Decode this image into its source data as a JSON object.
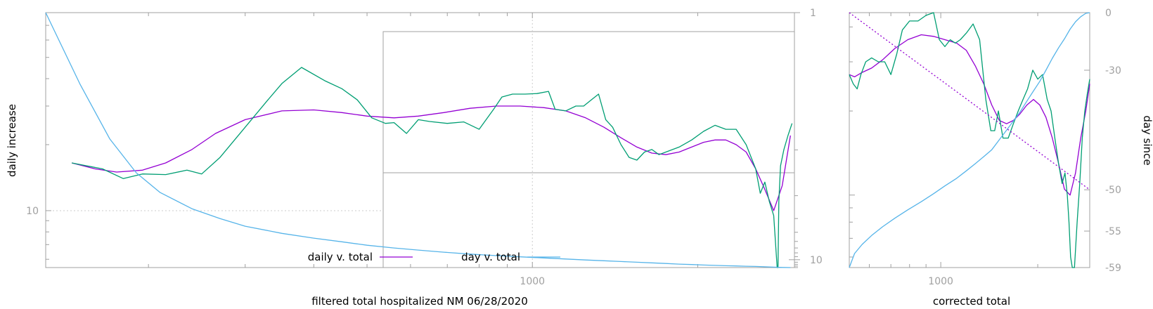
{
  "chart_data": [
    {
      "type": "line",
      "title": "",
      "xlabel": "filtered total hospitalized NM 06/28/2020",
      "ylabel": "daily increase",
      "y2label": "",
      "x_scale": "log",
      "y_scale": "log",
      "xlim": [
        130,
        3000
      ],
      "ylim": [
        5.5,
        80
      ],
      "y2_scale": "reciprocal",
      "y2lim": [
        1,
        14
      ],
      "x_ticks": [
        {
          "value": 1000,
          "label": "1000"
        }
      ],
      "y_ticks": [
        {
          "value": 10,
          "label": "10"
        }
      ],
      "y2_ticks": [
        {
          "value": 1,
          "label": "1"
        },
        {
          "value": 10,
          "label": "10"
        }
      ],
      "grid": "dotted lines at x=1000 and y=10",
      "legend": "bottom-center",
      "series": [
        {
          "name": "daily v. total",
          "color": "#9400d3",
          "axis": "y",
          "x": [
            145,
            160,
            175,
            195,
            215,
            240,
            265,
            300,
            350,
            400,
            450,
            500,
            560,
            620,
            690,
            770,
            860,
            950,
            1050,
            1150,
            1250,
            1350,
            1450,
            1550,
            1650,
            1750,
            1850,
            1950,
            2050,
            2150,
            2250,
            2350,
            2450,
            2550,
            2650,
            2750,
            2850,
            2950
          ],
          "y": [
            16.5,
            15.5,
            15.0,
            15.3,
            16.5,
            19.0,
            22.5,
            26.0,
            28.5,
            28.8,
            28.0,
            27.0,
            26.5,
            27.0,
            28.0,
            29.3,
            30.0,
            30.0,
            29.5,
            28.5,
            26.5,
            24.0,
            21.5,
            19.5,
            18.3,
            18.0,
            18.5,
            19.5,
            20.5,
            21.0,
            21.0,
            20.0,
            18.5,
            15.5,
            12.5,
            10.0,
            13.0,
            22.0
          ]
        },
        {
          "name": "",
          "color": "#009e73",
          "axis": "y",
          "x": [
            145,
            165,
            180,
            195,
            215,
            235,
            250,
            270,
            300,
            330,
            350,
            380,
            420,
            450,
            480,
            510,
            540,
            560,
            590,
            620,
            650,
            700,
            750,
            800,
            850,
            880,
            920,
            970,
            1020,
            1070,
            1100,
            1150,
            1200,
            1240,
            1280,
            1320,
            1360,
            1400,
            1450,
            1500,
            1550,
            1600,
            1650,
            1700,
            1750,
            1850,
            1950,
            2050,
            2150,
            2250,
            2350,
            2450,
            2550,
            2600,
            2650,
            2700,
            2750,
            2790,
            2800,
            2810,
            2830,
            2870,
            2920,
            2970
          ],
          "y": [
            16.5,
            15.5,
            14.0,
            14.7,
            14.6,
            15.3,
            14.7,
            17.5,
            24.0,
            32.0,
            38.0,
            45.0,
            39.0,
            36.0,
            32.0,
            26.5,
            25.0,
            25.2,
            22.5,
            26.0,
            25.5,
            25.0,
            25.4,
            23.5,
            29.0,
            33.0,
            34.0,
            34.0,
            34.2,
            35.0,
            29.0,
            28.5,
            30.0,
            30.0,
            32.0,
            34.0,
            26.0,
            24.0,
            20.0,
            17.5,
            17.0,
            18.5,
            19.0,
            18.0,
            18.5,
            19.5,
            21.0,
            23.0,
            24.5,
            23.5,
            23.5,
            20.0,
            15.5,
            12.0,
            13.5,
            11.0,
            9.5,
            5.5,
            5.5,
            11.0,
            16.0,
            19.0,
            22.0,
            25.0
          ]
        },
        {
          "name": "day v. total",
          "color": "#56b4e9",
          "axis": "y2",
          "x": [
            130,
            150,
            170,
            190,
            210,
            240,
            270,
            300,
            350,
            400,
            450,
            500,
            560,
            620,
            690,
            770,
            860,
            950,
            1050,
            1150,
            1250,
            1350,
            1450,
            1550,
            1650,
            1750,
            1850,
            1950,
            2050,
            2150,
            2250,
            2350,
            2450,
            2550,
            2650,
            2750,
            2850,
            2950
          ],
          "y": [
            1.0,
            1.35,
            1.85,
            2.4,
            2.9,
            3.5,
            4.0,
            4.5,
            5.1,
            5.6,
            6.05,
            6.55,
            7.0,
            7.4,
            7.85,
            8.3,
            8.7,
            9.05,
            9.4,
            9.75,
            10.1,
            10.4,
            10.7,
            11.0,
            11.3,
            11.6,
            11.9,
            12.15,
            12.4,
            12.6,
            12.8,
            12.95,
            13.1,
            13.25,
            13.45,
            13.7,
            13.9,
            14.0
          ]
        }
      ]
    },
    {
      "type": "line",
      "title": "",
      "xlabel": "corrected total",
      "ylabel": "",
      "y2label": "day since",
      "x_scale": "log",
      "xlim": [
        520,
        2900
      ],
      "y_scale": "log",
      "ylim": [
        5.5,
        45
      ],
      "y2_scale": "custom",
      "y2lim": [
        -59,
        0
      ],
      "x_ticks": [
        {
          "value": 1000,
          "label": "1000"
        }
      ],
      "y2_ticks": [
        {
          "value": 0,
          "label": "0"
        },
        {
          "value": -30,
          "label": "-30"
        },
        {
          "value": -50,
          "label": "-50"
        },
        {
          "value": -55,
          "label": "-55"
        },
        {
          "value": -59,
          "label": "-59"
        }
      ],
      "series": [
        {
          "name": "",
          "color": "#9400d3",
          "axis": "y",
          "x": [
            520,
            540,
            570,
            610,
            660,
            720,
            790,
            870,
            950,
            1030,
            1120,
            1200,
            1280,
            1360,
            1440,
            1520,
            1600,
            1680,
            1760,
            1850,
            1940,
            2030,
            2120,
            2220,
            2320,
            2420,
            2520,
            2620,
            2720,
            2820,
            2900
          ],
          "y": [
            27,
            26.5,
            27.5,
            28.5,
            30.5,
            33.5,
            36,
            37.5,
            37,
            36,
            35,
            33,
            29,
            25,
            21,
            18.5,
            18,
            18.5,
            19.5,
            21,
            22,
            21,
            19,
            16,
            13,
            10.5,
            10,
            12,
            16,
            20,
            25
          ]
        },
        {
          "name": "",
          "color": "#009e73",
          "axis": "y",
          "x": [
            520,
            535,
            550,
            565,
            585,
            610,
            640,
            670,
            700,
            730,
            760,
            800,
            850,
            900,
            950,
            990,
            1030,
            1070,
            1110,
            1150,
            1200,
            1260,
            1320,
            1380,
            1430,
            1470,
            1510,
            1560,
            1620,
            1680,
            1740,
            1800,
            1860,
            1930,
            2000,
            2070,
            2140,
            2200,
            2260,
            2320,
            2380,
            2430,
            2470,
            2500,
            2530,
            2560,
            2600,
            2650,
            2700,
            2750,
            2800,
            2850,
            2900
          ],
          "y": [
            27,
            25,
            24,
            27,
            30,
            31,
            30,
            30,
            27,
            32,
            39,
            42,
            42,
            44,
            45,
            36,
            34,
            36,
            35,
            36,
            38,
            41,
            36,
            22,
            17,
            17,
            20,
            16,
            16,
            18,
            20,
            22,
            24,
            28,
            26,
            27,
            22,
            20,
            16,
            13,
            11,
            12,
            10,
            8,
            6,
            5.5,
            5.5,
            8,
            11,
            16,
            20,
            23,
            26
          ]
        },
        {
          "name": "",
          "color": "#56b4e9",
          "axis": "y2",
          "x": [
            520,
            540,
            570,
            610,
            660,
            720,
            790,
            870,
            950,
            1030,
            1120,
            1200,
            1280,
            1360,
            1440,
            1520,
            1600,
            1680,
            1760,
            1850,
            1940,
            2030,
            2120,
            2220,
            2320,
            2420,
            2520,
            2620,
            2720,
            2820,
            2900
          ],
          "y": [
            -59,
            -57.5,
            -56.5,
            -55.5,
            -54.5,
            -53.5,
            -52.5,
            -51.5,
            -50.5,
            -49.5,
            -48.5,
            -47.5,
            -46.5,
            -45.5,
            -44.5,
            -43,
            -41.5,
            -40,
            -38.5,
            -36.5,
            -34.5,
            -32.5,
            -30,
            -27,
            -24,
            -21,
            -17,
            -13,
            -9,
            -4,
            0
          ]
        },
        {
          "name": "",
          "color": "#9400d3",
          "axis": "y2",
          "dashed": true,
          "x": [
            520,
            2900
          ],
          "y": [
            0,
            -50
          ]
        }
      ]
    }
  ]
}
